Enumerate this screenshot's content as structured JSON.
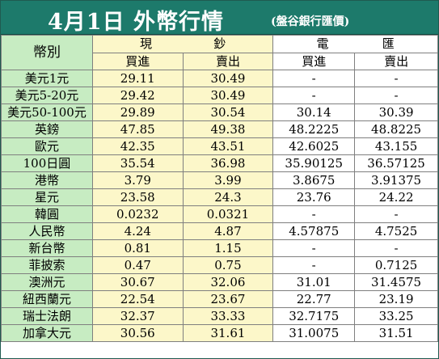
{
  "title": {
    "main": "4月1日 外幣行情",
    "source": "(盤谷銀行匯價)"
  },
  "headers": {
    "currency": "幣別",
    "cash_group": [
      "現",
      "鈔"
    ],
    "tt_group": [
      "電",
      "匯"
    ],
    "buy": "買進",
    "sell": "賣出"
  },
  "colors": {
    "title_bar": "#1d7a6b",
    "currency_column": "#c7ecc2",
    "cash_columns": "#fcf7c9",
    "tt_columns": "#ffffff"
  },
  "rows": [
    {
      "currency": "美元1元",
      "cash_buy": "29.11",
      "cash_sell": "30.49",
      "tt_buy": "-",
      "tt_sell": "-"
    },
    {
      "currency": "美元5-20元",
      "cash_buy": "29.42",
      "cash_sell": "30.49",
      "tt_buy": "-",
      "tt_sell": "-"
    },
    {
      "currency": "美元50-100元",
      "cash_buy": "29.89",
      "cash_sell": "30.54",
      "tt_buy": "30.14",
      "tt_sell": "30.39"
    },
    {
      "currency": "英鎊",
      "cash_buy": "47.85",
      "cash_sell": "49.38",
      "tt_buy": "48.2225",
      "tt_sell": "48.8225"
    },
    {
      "currency": "歐元",
      "cash_buy": "42.35",
      "cash_sell": "43.51",
      "tt_buy": "42.6025",
      "tt_sell": "43.155"
    },
    {
      "currency": "100日圓",
      "cash_buy": "35.54",
      "cash_sell": "36.98",
      "tt_buy": "35.90125",
      "tt_sell": "36.57125"
    },
    {
      "currency": "港幣",
      "cash_buy": "3.79",
      "cash_sell": "3.99",
      "tt_buy": "3.8675",
      "tt_sell": "3.91375"
    },
    {
      "currency": "星元",
      "cash_buy": "23.58",
      "cash_sell": "24.3",
      "tt_buy": "23.76",
      "tt_sell": "24.22"
    },
    {
      "currency": "韓圓",
      "cash_buy": "0.0232",
      "cash_sell": "0.0321",
      "tt_buy": "-",
      "tt_sell": "-"
    },
    {
      "currency": "人民幣",
      "cash_buy": "4.24",
      "cash_sell": "4.87",
      "tt_buy": "4.57875",
      "tt_sell": "4.7525"
    },
    {
      "currency": "新台幣",
      "cash_buy": "0.81",
      "cash_sell": "1.15",
      "tt_buy": "-",
      "tt_sell": "-"
    },
    {
      "currency": "菲披索",
      "cash_buy": "0.47",
      "cash_sell": "0.75",
      "tt_buy": "-",
      "tt_sell": "0.7125"
    },
    {
      "currency": "澳洲元",
      "cash_buy": "30.67",
      "cash_sell": "32.06",
      "tt_buy": "31.01",
      "tt_sell": "31.4575"
    },
    {
      "currency": "紐西蘭元",
      "cash_buy": "22.54",
      "cash_sell": "23.67",
      "tt_buy": "22.77",
      "tt_sell": "23.19"
    },
    {
      "currency": "瑞士法朗",
      "cash_buy": "32.37",
      "cash_sell": "33.33",
      "tt_buy": "32.7175",
      "tt_sell": "33.25"
    },
    {
      "currency": "加拿大元",
      "cash_buy": "30.56",
      "cash_sell": "31.61",
      "tt_buy": "31.0075",
      "tt_sell": "31.51"
    }
  ]
}
